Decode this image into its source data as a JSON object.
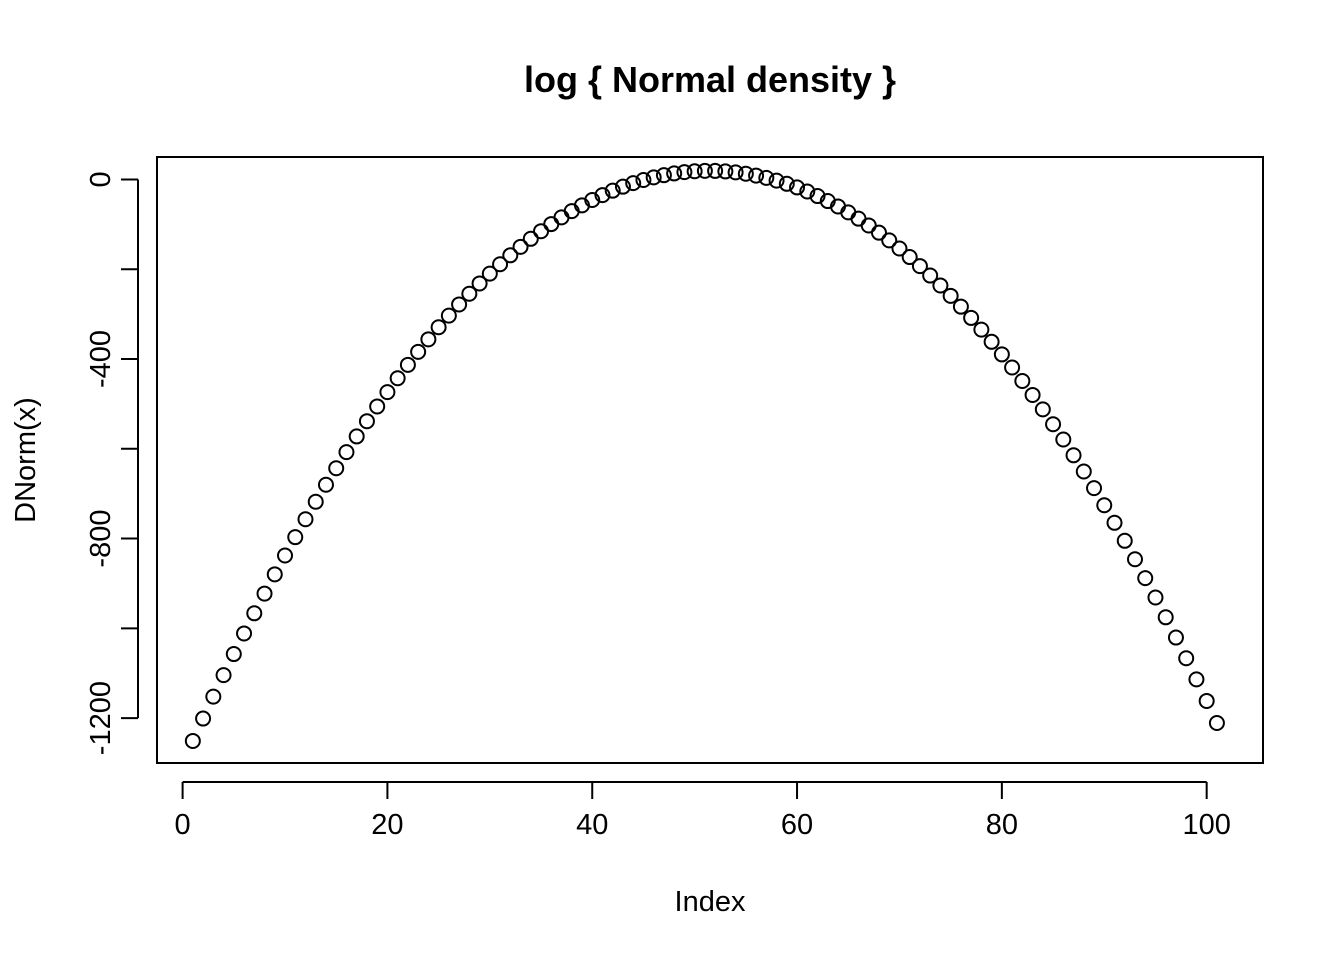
{
  "chart_data": {
    "type": "scatter",
    "title": "log { Normal density }",
    "xlabel": "Index",
    "ylabel": "DNorm(x)",
    "xlim": [
      -2.5,
      105.5
    ],
    "ylim": [
      -1300,
      50
    ],
    "xticks": [
      0,
      20,
      40,
      60,
      80,
      100
    ],
    "xtick_labels": [
      "0",
      "20",
      "40",
      "60",
      "80",
      "100"
    ],
    "yticks": [
      -1200,
      -1000,
      -800,
      -600,
      -400,
      -200,
      0
    ],
    "ytick_labels": [
      "-1200",
      "",
      "-800",
      "",
      "-400",
      "",
      "0"
    ],
    "grid": false,
    "marker": "open-circle",
    "color": "#000000",
    "x": [
      1,
      2,
      3,
      4,
      5,
      6,
      7,
      8,
      9,
      10,
      11,
      12,
      13,
      14,
      15,
      16,
      17,
      18,
      19,
      20,
      21,
      22,
      23,
      24,
      25,
      26,
      27,
      28,
      29,
      30,
      31,
      32,
      33,
      34,
      35,
      36,
      37,
      38,
      39,
      40,
      41,
      42,
      43,
      44,
      45,
      46,
      47,
      48,
      49,
      50,
      51,
      52,
      53,
      54,
      55,
      56,
      57,
      58,
      59,
      60,
      61,
      62,
      63,
      64,
      65,
      66,
      67,
      68,
      69,
      70,
      71,
      72,
      73,
      74,
      75,
      76,
      77,
      78,
      79,
      80,
      81,
      82,
      83,
      84,
      85,
      86,
      87,
      88,
      89,
      90,
      91,
      92,
      93,
      94,
      95,
      96,
      97,
      98,
      99,
      100,
      101
    ],
    "y": [
      -1250.9,
      -1201.0,
      -1152.1,
      -1104.2,
      -1057.3,
      -1011.4,
      -966.5,
      -922.6,
      -879.7,
      -837.8,
      -796.9,
      -757.0,
      -718.1,
      -680.2,
      -643.3,
      -607.4,
      -572.5,
      -538.6,
      -505.7,
      -473.8,
      -442.9,
      -413.0,
      -384.1,
      -356.2,
      -329.3,
      -303.4,
      -278.5,
      -254.6,
      -231.7,
      -209.8,
      -188.9,
      -169.0,
      -150.1,
      -132.2,
      -115.3,
      -99.4,
      -84.5,
      -70.6,
      -57.7,
      -45.8,
      -34.9,
      -25.0,
      -16.1,
      -8.2,
      -1.3,
      4.6,
      9.5,
      13.4,
      16.3,
      18.2,
      19.1,
      19.0,
      17.9,
      15.8,
      12.7,
      8.6,
      3.5,
      -2.6,
      -9.7,
      -17.8,
      -26.9,
      -37.0,
      -48.1,
      -60.2,
      -73.3,
      -87.4,
      -102.5,
      -118.6,
      -135.7,
      -153.8,
      -172.9,
      -193.0,
      -214.1,
      -236.2,
      -259.3,
      -283.4,
      -308.5,
      -334.6,
      -361.7,
      -389.8,
      -418.9,
      -449.0,
      -480.1,
      -512.2,
      -545.3,
      -579.4,
      -614.5,
      -650.6,
      -687.7,
      -725.8,
      -764.9,
      -805.0,
      -846.1,
      -888.2,
      -931.3,
      -975.4,
      -1020.5,
      -1066.6,
      -1113.7,
      -1161.8,
      -1210.9
    ]
  }
}
